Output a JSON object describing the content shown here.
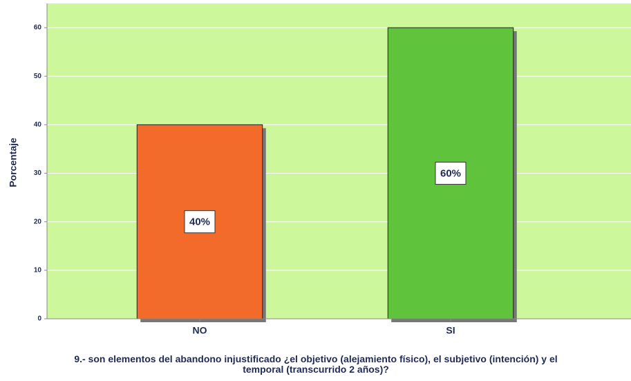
{
  "chart_data": {
    "type": "bar",
    "y_label": "Porcentaje",
    "x_label": "9.- son elementos del abandono injustificado ¿el objetivo (alejamiento físico), el subjetivo (intención) y el temporal (transcurrido 2 años)?",
    "categories": [
      "NO",
      "SI"
    ],
    "values": [
      40,
      60
    ],
    "value_labels": [
      "40%",
      "60%"
    ],
    "colors": [
      "#f26b2a",
      "#5fc43b"
    ],
    "background": "#ccf79a",
    "ylim": [
      0,
      65
    ],
    "yticks": [
      0,
      10,
      20,
      30,
      40,
      50,
      60
    ],
    "grid": true
  }
}
